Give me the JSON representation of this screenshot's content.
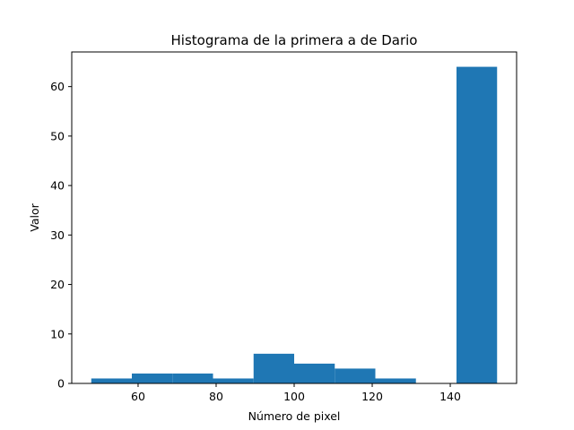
{
  "chart_data": {
    "type": "bar",
    "title": "Histograma de la primera a de Dario",
    "xlabel": "Número de pixel",
    "ylabel": "Valor",
    "bins": [
      {
        "start": 48,
        "end": 58.4,
        "value": 1
      },
      {
        "start": 58.4,
        "end": 68.8,
        "value": 2
      },
      {
        "start": 68.8,
        "end": 79.2,
        "value": 2
      },
      {
        "start": 79.2,
        "end": 89.6,
        "value": 1
      },
      {
        "start": 89.6,
        "end": 100.0,
        "value": 6
      },
      {
        "start": 100.0,
        "end": 110.4,
        "value": 4
      },
      {
        "start": 110.4,
        "end": 120.8,
        "value": 3
      },
      {
        "start": 120.8,
        "end": 131.2,
        "value": 1
      },
      {
        "start": 131.2,
        "end": 141.6,
        "value": 0
      },
      {
        "start": 141.6,
        "end": 152.0,
        "value": 64
      }
    ],
    "xlim": [
      43,
      157
    ],
    "ylim": [
      0,
      67
    ],
    "xticks": [
      60,
      80,
      100,
      120,
      140
    ],
    "yticks": [
      0,
      10,
      20,
      30,
      40,
      50,
      60
    ],
    "bar_color": "#1f77b4",
    "grid": false,
    "legend": false
  }
}
